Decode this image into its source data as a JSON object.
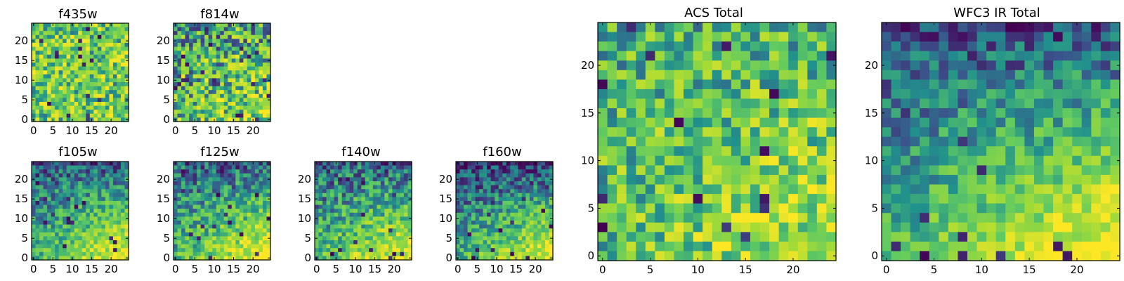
{
  "figure": {
    "colormap": "viridis",
    "palette": [
      "#440154",
      "#3b528b",
      "#21918c",
      "#5ec962",
      "#a5db36",
      "#fde725"
    ]
  },
  "chart_data": [
    {
      "id": "f435w",
      "type": "heatmap",
      "title": "f435w",
      "grid_size": 25,
      "xlim": [
        0,
        24
      ],
      "ylim": [
        0,
        24
      ],
      "xticks": [
        0,
        5,
        10,
        15,
        20
      ],
      "yticks": [
        0,
        5,
        10,
        15,
        20
      ],
      "base_level": 0.66,
      "hot_corner": 0.0,
      "dark_edge": 0.0,
      "variation": 0.34,
      "seed": 11
    },
    {
      "id": "f814w",
      "type": "heatmap",
      "title": "f814w",
      "grid_size": 25,
      "xlim": [
        0,
        24
      ],
      "ylim": [
        0,
        24
      ],
      "xticks": [
        0,
        5,
        10,
        15,
        20
      ],
      "yticks": [
        0,
        5,
        10,
        15,
        20
      ],
      "base_level": 0.6,
      "hot_corner": 0.2,
      "dark_edge": 0.1,
      "variation": 0.4,
      "seed": 23
    },
    {
      "id": "f105w",
      "type": "heatmap",
      "title": "f105w",
      "grid_size": 25,
      "xlim": [
        0,
        24
      ],
      "ylim": [
        0,
        24
      ],
      "xticks": [
        0,
        5,
        10,
        15,
        20
      ],
      "yticks": [
        0,
        5,
        10,
        15,
        20
      ],
      "base_level": 0.5,
      "hot_corner": 0.45,
      "dark_edge": 0.3,
      "variation": 0.22,
      "seed": 37
    },
    {
      "id": "f125w",
      "type": "heatmap",
      "title": "f125w",
      "grid_size": 25,
      "xlim": [
        0,
        24
      ],
      "ylim": [
        0,
        24
      ],
      "xticks": [
        0,
        5,
        10,
        15,
        20
      ],
      "yticks": [
        0,
        5,
        10,
        15,
        20
      ],
      "base_level": 0.52,
      "hot_corner": 0.45,
      "dark_edge": 0.3,
      "variation": 0.24,
      "seed": 41
    },
    {
      "id": "f140w",
      "type": "heatmap",
      "title": "f140w",
      "grid_size": 25,
      "xlim": [
        0,
        24
      ],
      "ylim": [
        0,
        24
      ],
      "xticks": [
        0,
        5,
        10,
        15,
        20
      ],
      "yticks": [
        0,
        5,
        10,
        15,
        20
      ],
      "base_level": 0.52,
      "hot_corner": 0.4,
      "dark_edge": 0.3,
      "variation": 0.26,
      "seed": 53
    },
    {
      "id": "f160w",
      "type": "heatmap",
      "title": "f160w",
      "grid_size": 25,
      "xlim": [
        0,
        24
      ],
      "ylim": [
        0,
        24
      ],
      "xticks": [
        0,
        5,
        10,
        15,
        20
      ],
      "yticks": [
        0,
        5,
        10,
        15,
        20
      ],
      "base_level": 0.46,
      "hot_corner": 0.5,
      "dark_edge": 0.35,
      "variation": 0.22,
      "seed": 67
    },
    {
      "id": "acs-total",
      "type": "heatmap",
      "title": "ACS Total",
      "grid_size": 25,
      "xlim": [
        0,
        24
      ],
      "ylim": [
        0,
        24
      ],
      "xticks": [
        0,
        5,
        10,
        15,
        20
      ],
      "yticks": [
        0,
        5,
        10,
        15,
        20
      ],
      "base_level": 0.64,
      "hot_corner": 0.25,
      "dark_edge": 0.05,
      "variation": 0.3,
      "seed": 79
    },
    {
      "id": "wfc3-ir-total",
      "type": "heatmap",
      "title": "WFC3 IR Total",
      "grid_size": 25,
      "xlim": [
        0,
        24
      ],
      "ylim": [
        0,
        24
      ],
      "xticks": [
        0,
        5,
        10,
        15,
        20
      ],
      "yticks": [
        0,
        5,
        10,
        15,
        20
      ],
      "base_level": 0.5,
      "hot_corner": 0.5,
      "dark_edge": 0.35,
      "variation": 0.2,
      "seed": 97
    }
  ]
}
